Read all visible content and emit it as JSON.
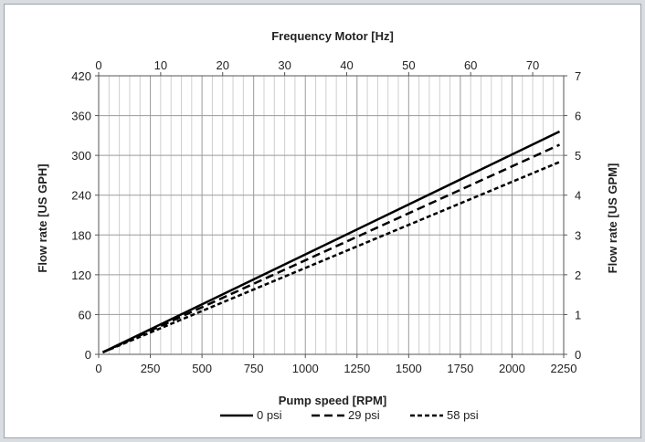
{
  "chart_data": {
    "type": "line",
    "xlabel": "Pump speed [RPM]",
    "x2label": "Frequency Motor [Hz]",
    "ylabel": "Flow rate [US GPH]",
    "y2label": "Flow rate [US GPM]",
    "xlim": [
      0,
      2250
    ],
    "x2lim": [
      0,
      75
    ],
    "ylim": [
      0,
      420
    ],
    "y2lim": [
      0,
      7
    ],
    "x_ticks": [
      0,
      250,
      500,
      750,
      1000,
      1250,
      1500,
      1750,
      2000,
      2250
    ],
    "x2_ticks": [
      0,
      10,
      20,
      30,
      40,
      50,
      60,
      70
    ],
    "y_ticks": [
      0,
      60,
      120,
      180,
      240,
      300,
      360,
      420
    ],
    "y2_ticks": [
      0,
      1,
      2,
      3,
      4,
      5,
      6,
      7
    ],
    "x_minor_step": 50,
    "grid": true,
    "legend_position": "bottom",
    "series": [
      {
        "name": "0 psi",
        "style": "solid",
        "x": [
          20,
          2230
        ],
        "y": [
          3,
          336
        ]
      },
      {
        "name": "29 psi",
        "style": "dashed",
        "x": [
          20,
          2230
        ],
        "y": [
          3,
          316
        ]
      },
      {
        "name": "58 psi",
        "style": "dotted",
        "x": [
          20,
          2230
        ],
        "y": [
          3,
          290
        ]
      }
    ]
  }
}
